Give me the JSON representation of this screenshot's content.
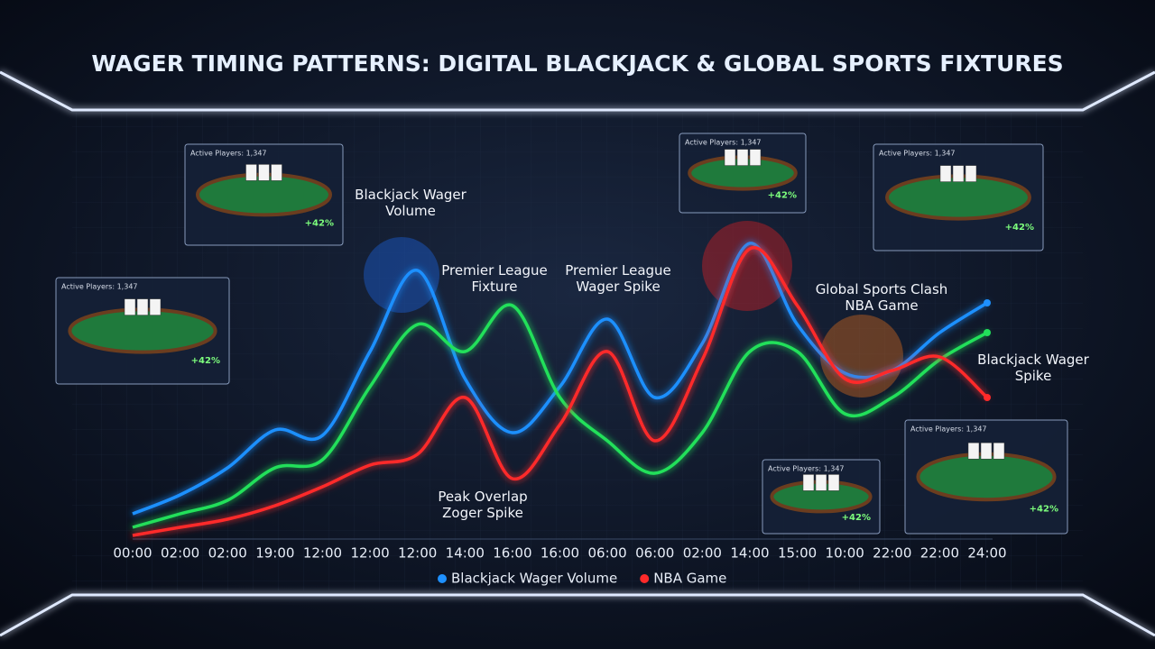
{
  "chart_data": {
    "type": "line",
    "title": "WAGER TIMING PATTERNS: DIGITAL BLACKJACK & GLOBAL SPORTS FIXTURES",
    "categories": [
      "00:00",
      "02:00",
      "02:00",
      "19:00",
      "12:00",
      "12:00",
      "12:00",
      "14:00",
      "16:00",
      "16:00",
      "06:00",
      "06:00",
      "02:00",
      "14:00",
      "15:00",
      "10:00",
      "22:00",
      "22:00",
      "24:00"
    ],
    "series": [
      {
        "name": "Blackjack Wager Volume",
        "color": "#1e90ff",
        "values": [
          10,
          17,
          27,
          41,
          39,
          70,
          100,
          60,
          40,
          57,
          82,
          53,
          73,
          110,
          80,
          62,
          63,
          77,
          88
        ]
      },
      {
        "color": "#22e05a",
        "values": [
          5,
          10,
          15,
          27,
          30,
          57,
          80,
          70,
          87,
          53,
          37,
          25,
          40,
          70,
          70,
          47,
          53,
          67,
          77
        ]
      },
      {
        "name": "NBA Game",
        "color": "#ff2a2a",
        "values": [
          2,
          5,
          8,
          13,
          20,
          28,
          32,
          53,
          23,
          43,
          70,
          37,
          67,
          108,
          87,
          60,
          63,
          68,
          53
        ]
      }
    ],
    "annotations": [
      "Blackjack Wager Volume",
      "Premier League Fixture",
      "Premier League Wager Spike",
      "Global Sports Clash NBA Game",
      "Blackjack Wager Spike",
      "Peak Overlap Zoger Spike"
    ],
    "panels": [
      {
        "players": "Active Players: 1,347",
        "pct": "+42%"
      },
      {
        "players": "Active Players: 1,347",
        "pct": "+42%"
      },
      {
        "players": "Active Players: 1,347",
        "pct": "+42%"
      },
      {
        "players": "Active Players: 1,347",
        "pct": "+42%"
      },
      {
        "players": "Active Players: 1,347",
        "pct": "+42%"
      },
      {
        "players": "Active Players: 1,347",
        "pct": "+42%"
      }
    ]
  }
}
